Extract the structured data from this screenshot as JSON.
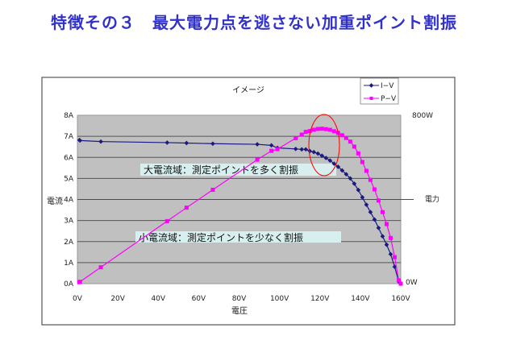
{
  "slide_title": "特徴その３　最大電力点を逃さない加重ポイント割振",
  "chart_data": {
    "type": "line",
    "title": "イメージ",
    "xlabel": "電圧",
    "ylabel": "電流",
    "y2label": "電力",
    "xlim": [
      0,
      160
    ],
    "ylim": [
      0,
      8
    ],
    "y2lim": [
      0,
      800
    ],
    "x_ticks": [
      "0V",
      "20V",
      "40V",
      "60V",
      "80V",
      "100V",
      "120V",
      "140V",
      "160V"
    ],
    "y_ticks": [
      "0A",
      "1A",
      "2A",
      "3A",
      "4A",
      "5A",
      "6A",
      "7A",
      "8A"
    ],
    "y2_ticks": [
      "0W",
      "800W"
    ],
    "grid": true,
    "legend_position": "top-right",
    "x": [
      1,
      1.3,
      11.6,
      44.4,
      54,
      67,
      89,
      96,
      99,
      108,
      111,
      113,
      115,
      117,
      119,
      121,
      123,
      125,
      127,
      129,
      131,
      133,
      135,
      137,
      139,
      141,
      143,
      145,
      147,
      149,
      151,
      153,
      155,
      157,
      159,
      160
    ],
    "series": [
      {
        "name": "I−V",
        "axis": "left",
        "unit": "A",
        "color": "#1a1a80",
        "marker": "diamond",
        "values": [
          6.82,
          6.8,
          6.75,
          6.7,
          6.68,
          6.65,
          6.62,
          6.57,
          6.45,
          6.4,
          6.38,
          6.38,
          6.3,
          6.25,
          6.18,
          6.08,
          5.97,
          5.85,
          5.7,
          5.55,
          5.38,
          5.2,
          5.0,
          4.75,
          4.45,
          4.1,
          3.75,
          3.4,
          3.05,
          2.65,
          2.25,
          1.85,
          1.4,
          0.8,
          0.1,
          0
        ]
      },
      {
        "name": "P−V",
        "axis": "right",
        "unit": "W",
        "color": "#ff00ff",
        "marker": "square",
        "values": [
          7,
          9,
          78,
          297,
          361,
          446,
          589,
          631,
          639,
          691,
          708,
          721,
          725,
          731,
          735,
          736,
          734,
          731,
          724,
          716,
          705,
          692,
          675,
          651,
          619,
          578,
          536,
          493,
          448,
          395,
          340,
          283,
          217,
          126,
          16,
          0
        ]
      }
    ],
    "reference_line": {
      "axis": "left",
      "value": 4,
      "color": "#ff0000"
    },
    "highlight": {
      "shape": "ellipse",
      "around": "maximum power point",
      "color": "#ff0000"
    },
    "annotations": [
      {
        "text": "大電流域：測定ポイントを多く割振",
        "background": "#d8efef"
      },
      {
        "text": "小電流域：測定ポイントを少なく割振",
        "background": "#d8efef"
      }
    ]
  }
}
